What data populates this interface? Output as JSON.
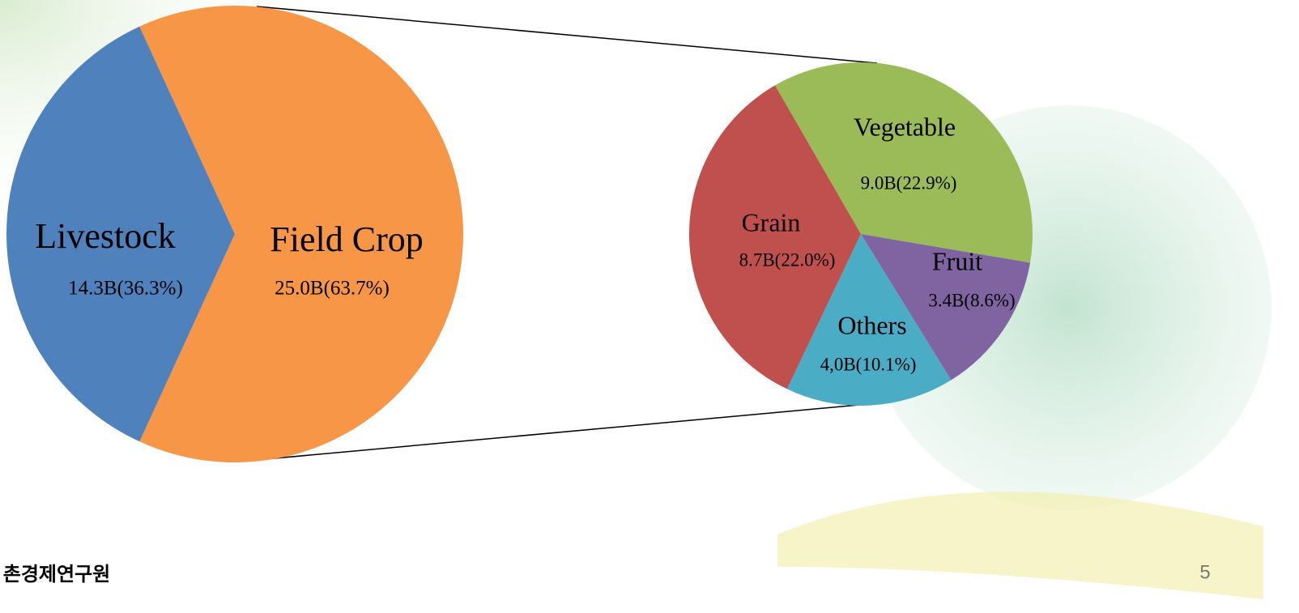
{
  "chart_data": [
    {
      "type": "pie",
      "categories": [
        "Livestock",
        "Field Crop"
      ],
      "values": [
        36.3,
        63.7
      ],
      "value_labels": [
        "14.3B(36.3%)",
        "25.0B(63.7%)"
      ],
      "colors": [
        "#4f81bd",
        "#f79646"
      ]
    },
    {
      "type": "pie",
      "categories": [
        "Vegetable",
        "Fruit",
        "Others",
        "Grain"
      ],
      "values": [
        22.9,
        8.6,
        10.1,
        22.0
      ],
      "value_labels": [
        "9.0B(22.9%)",
        "3.4B(8.6%)",
        "4,0B(10.1%)",
        "8.7B(22.0%)"
      ],
      "colors": [
        "#9bbb59",
        "#8064a2",
        "#4bacc6",
        "#c0504d"
      ]
    }
  ],
  "footer": {
    "organization": "촌경제연구원",
    "page_number": "5"
  }
}
